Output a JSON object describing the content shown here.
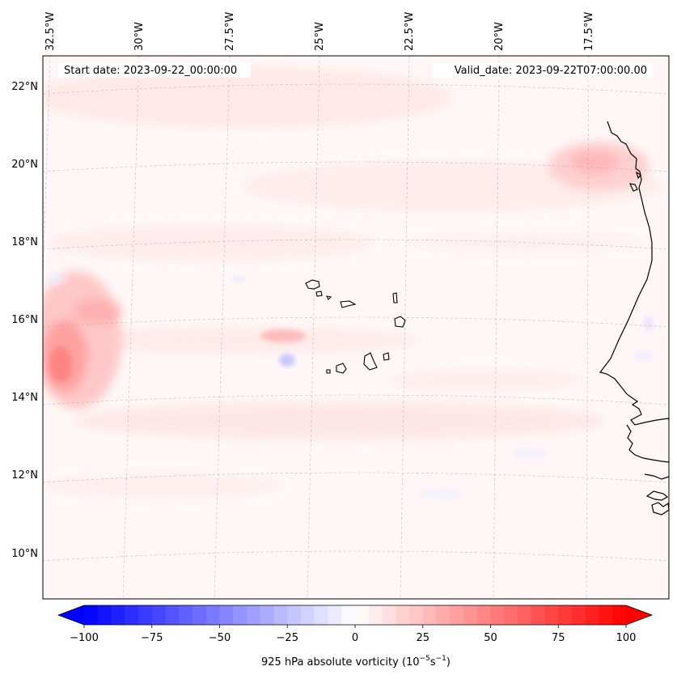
{
  "map": {
    "start_date_label": "Start date: 2023-09-22_00:00:00",
    "valid_date_label": "Valid_date: 2023-09-22T07:00:00.00",
    "lon_labels": [
      "32.5°W",
      "30°W",
      "27.5°W",
      "25°W",
      "22.5°W",
      "20°W",
      "17.5°W"
    ],
    "lat_labels": [
      "22°N",
      "20°N",
      "18°N",
      "16°N",
      "14°N",
      "12°N",
      "10°N"
    ],
    "field": "925 hPa absolute vorticity",
    "features": {
      "islands": "Cabo Verde islands",
      "coastline": "West African coast"
    }
  },
  "colorbar": {
    "label_main": "925 hPa absolute vorticity (10",
    "label_exp1": "−5",
    "label_mid": "s",
    "label_exp2": "−1",
    "label_close": ")",
    "min": -100,
    "max": 100,
    "step": 5,
    "ticks": [
      "−100",
      "−75",
      "−50",
      "−25",
      "0",
      "25",
      "50",
      "75",
      "100"
    ],
    "tick_values": [
      -100,
      -75,
      -50,
      -25,
      0,
      25,
      50,
      75,
      100
    ],
    "colors": {
      "neg": "#0000ff",
      "mid": "#ffffff",
      "pos": "#ff0000"
    }
  }
}
